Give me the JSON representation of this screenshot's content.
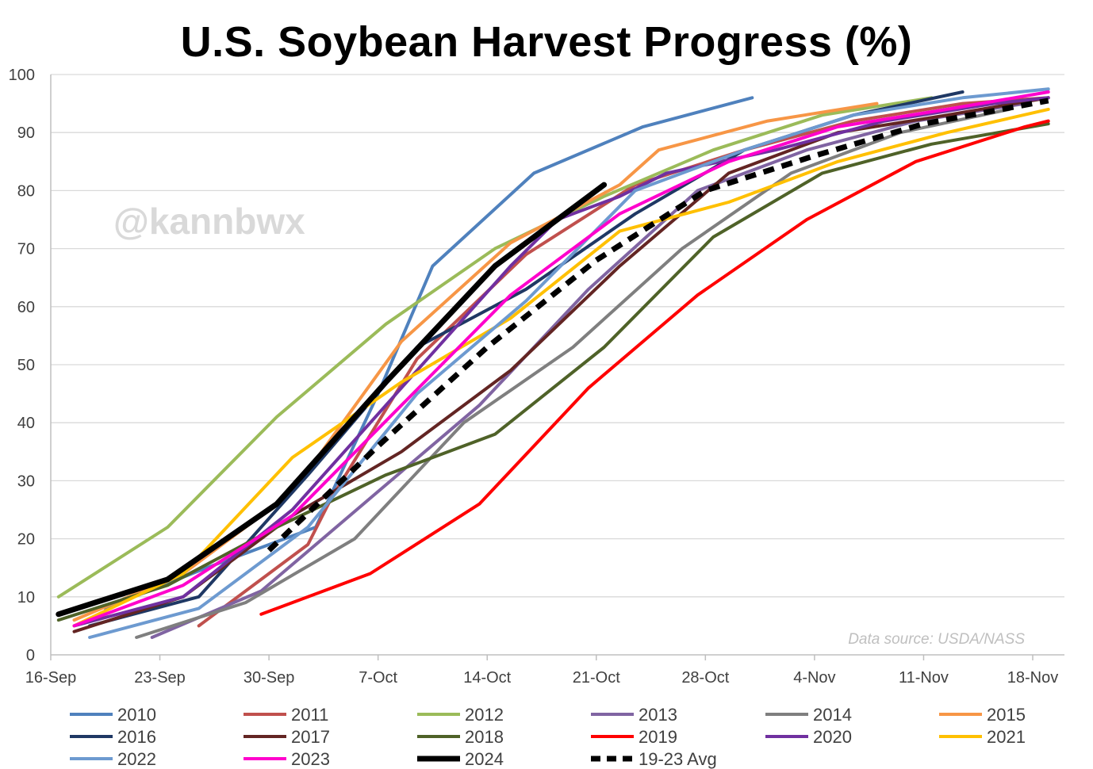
{
  "chart_data": {
    "type": "line",
    "title": "U.S. Soybean Harvest Progress (%)",
    "watermark": "@kannbwx",
    "source_note": "Data source: USDA/NASS",
    "xlabel": "",
    "ylabel": "",
    "x_unit": "days since 16-Sep",
    "ylim": [
      0,
      100
    ],
    "xlim": [
      0,
      64
    ],
    "y_ticks": [
      0,
      10,
      20,
      30,
      40,
      50,
      60,
      70,
      80,
      90,
      100
    ],
    "x_ticks": [
      {
        "label": "16-Sep",
        "value": 0
      },
      {
        "label": "23-Sep",
        "value": 7
      },
      {
        "label": "30-Sep",
        "value": 14
      },
      {
        "label": "7-Oct",
        "value": 21
      },
      {
        "label": "14-Oct",
        "value": 28
      },
      {
        "label": "21-Oct",
        "value": 35
      },
      {
        "label": "28-Oct",
        "value": 42
      },
      {
        "label": "4-Nov",
        "value": 49
      },
      {
        "label": "11-Nov",
        "value": 56
      },
      {
        "label": "18-Nov",
        "value": 63
      }
    ],
    "grid": "horizontal",
    "series": [
      {
        "name": "2010",
        "color": "#4f81bd",
        "width": 4,
        "dash": false,
        "points": [
          [
            3.5,
            8
          ],
          [
            10,
            15
          ],
          [
            17,
            22
          ],
          [
            21,
            45
          ],
          [
            24.5,
            67
          ],
          [
            31,
            83
          ],
          [
            38,
            91
          ],
          [
            45,
            96
          ]
        ]
      },
      {
        "name": "2011",
        "color": "#c0504d",
        "width": 4,
        "dash": false,
        "points": [
          [
            9.5,
            5
          ],
          [
            16.5,
            19
          ],
          [
            18,
            27
          ],
          [
            23.5,
            51
          ],
          [
            30.5,
            69
          ],
          [
            37.5,
            81
          ],
          [
            44.5,
            87
          ],
          [
            51.5,
            92
          ],
          [
            58.5,
            95
          ],
          [
            64,
            96
          ]
        ]
      },
      {
        "name": "2012",
        "color": "#9bbb59",
        "width": 4,
        "dash": false,
        "points": [
          [
            0.5,
            10
          ],
          [
            7.5,
            22
          ],
          [
            14.5,
            41
          ],
          [
            21.5,
            57
          ],
          [
            28.5,
            70
          ],
          [
            35.5,
            79
          ],
          [
            42.5,
            87
          ],
          [
            49.5,
            93
          ],
          [
            56.5,
            96
          ]
        ]
      },
      {
        "name": "2013",
        "color": "#8064a2",
        "width": 4,
        "dash": false,
        "points": [
          [
            6.5,
            3
          ],
          [
            13.5,
            11
          ],
          [
            20.5,
            27
          ],
          [
            27.5,
            43
          ],
          [
            34.5,
            63
          ],
          [
            41.5,
            80
          ],
          [
            48.5,
            87
          ],
          [
            55.5,
            92
          ],
          [
            62.5,
            95
          ]
        ]
      },
      {
        "name": "2014",
        "color": "#7f7f7f",
        "width": 4,
        "dash": false,
        "points": [
          [
            5.5,
            3
          ],
          [
            12.5,
            9
          ],
          [
            19.5,
            20
          ],
          [
            26.5,
            40
          ],
          [
            33.5,
            53
          ],
          [
            40.5,
            70
          ],
          [
            47.5,
            83
          ],
          [
            54.5,
            90
          ],
          [
            61.5,
            94
          ]
        ]
      },
      {
        "name": "2015",
        "color": "#f79646",
        "width": 4,
        "dash": false,
        "points": [
          [
            1.5,
            6
          ],
          [
            8.5,
            14
          ],
          [
            15.5,
            28
          ],
          [
            22.5,
            54
          ],
          [
            29.5,
            71
          ],
          [
            36.5,
            81
          ],
          [
            39,
            87
          ],
          [
            46,
            92
          ],
          [
            53,
            95
          ]
        ]
      },
      {
        "name": "2016",
        "color": "#1f3864",
        "width": 4,
        "dash": false,
        "points": [
          [
            2.5,
            5
          ],
          [
            9.5,
            10
          ],
          [
            16.5,
            31
          ],
          [
            23.5,
            53
          ],
          [
            30.5,
            63
          ],
          [
            37.5,
            76
          ],
          [
            44.5,
            87
          ],
          [
            51.5,
            93
          ],
          [
            58.5,
            97
          ]
        ]
      },
      {
        "name": "2017",
        "color": "#632523",
        "width": 4,
        "dash": false,
        "points": [
          [
            1.5,
            4
          ],
          [
            8.5,
            10
          ],
          [
            15.5,
            24
          ],
          [
            22.5,
            35
          ],
          [
            29.5,
            49
          ],
          [
            36.5,
            67
          ],
          [
            43.5,
            83
          ],
          [
            50.5,
            90
          ],
          [
            57.5,
            93
          ],
          [
            64,
            96
          ]
        ]
      },
      {
        "name": "2018",
        "color": "#4f6228",
        "width": 4,
        "dash": false,
        "points": [
          [
            0.5,
            6
          ],
          [
            7.5,
            12
          ],
          [
            14.5,
            22
          ],
          [
            21.5,
            31
          ],
          [
            28.5,
            38
          ],
          [
            35.5,
            53
          ],
          [
            42.5,
            72
          ],
          [
            49.5,
            83
          ],
          [
            56.5,
            88
          ],
          [
            64,
            91.5
          ]
        ]
      },
      {
        "name": "2019",
        "color": "#ff0000",
        "width": 4,
        "dash": false,
        "points": [
          [
            13.5,
            7
          ],
          [
            20.5,
            14
          ],
          [
            27.5,
            26
          ],
          [
            34.5,
            46
          ],
          [
            41.5,
            62
          ],
          [
            48.5,
            75
          ],
          [
            55.5,
            85
          ],
          [
            62.5,
            91
          ],
          [
            64,
            92
          ]
        ]
      },
      {
        "name": "2020",
        "color": "#7030a0",
        "width": 4,
        "dash": false,
        "points": [
          [
            1.5,
            5
          ],
          [
            8.5,
            10
          ],
          [
            15.5,
            25
          ],
          [
            22.5,
            46
          ],
          [
            29.5,
            67
          ],
          [
            32.5,
            75
          ],
          [
            36.5,
            79
          ],
          [
            39.5,
            83
          ],
          [
            46.5,
            87
          ],
          [
            53.5,
            92
          ],
          [
            60.5,
            95
          ],
          [
            64,
            96
          ]
        ]
      },
      {
        "name": "2021",
        "color": "#ffc000",
        "width": 4,
        "dash": false,
        "points": [
          [
            1.5,
            5
          ],
          [
            8.5,
            14
          ],
          [
            15.5,
            34
          ],
          [
            22.5,
            47
          ],
          [
            29.5,
            58
          ],
          [
            36.5,
            73
          ],
          [
            43.5,
            78
          ],
          [
            50.5,
            85
          ],
          [
            57.5,
            90
          ],
          [
            64,
            94
          ]
        ]
      },
      {
        "name": "2022",
        "color": "#6d9ad0",
        "width": 4,
        "dash": false,
        "points": [
          [
            2.5,
            3
          ],
          [
            9.5,
            8
          ],
          [
            16.5,
            22
          ],
          [
            23.5,
            45
          ],
          [
            30.5,
            61
          ],
          [
            37.5,
            80
          ],
          [
            44.5,
            87
          ],
          [
            51.5,
            93
          ],
          [
            58.5,
            96
          ],
          [
            64,
            97.5
          ]
        ]
      },
      {
        "name": "2023",
        "color": "#ff00cc",
        "width": 4,
        "dash": false,
        "points": [
          [
            1.5,
            5
          ],
          [
            8.5,
            12
          ],
          [
            15.5,
            24
          ],
          [
            22.5,
            43
          ],
          [
            29.5,
            62
          ],
          [
            36.5,
            76
          ],
          [
            43.5,
            85
          ],
          [
            50.5,
            91
          ],
          [
            57.5,
            94
          ],
          [
            64,
            97
          ]
        ]
      },
      {
        "name": "2024",
        "color": "#000000",
        "width": 7,
        "dash": false,
        "points": [
          [
            0.5,
            7
          ],
          [
            7.5,
            13
          ],
          [
            14.5,
            26
          ],
          [
            21.5,
            47
          ],
          [
            28.5,
            67
          ],
          [
            35.5,
            81
          ]
        ]
      },
      {
        "name": "19-23 Avg",
        "color": "#000000",
        "width": 7,
        "dash": true,
        "points": [
          [
            14,
            18
          ],
          [
            21,
            36
          ],
          [
            28,
            53
          ],
          [
            35,
            68
          ],
          [
            42,
            80
          ],
          [
            49,
            86
          ],
          [
            56,
            91.5
          ],
          [
            64,
            95.5
          ]
        ]
      }
    ]
  }
}
